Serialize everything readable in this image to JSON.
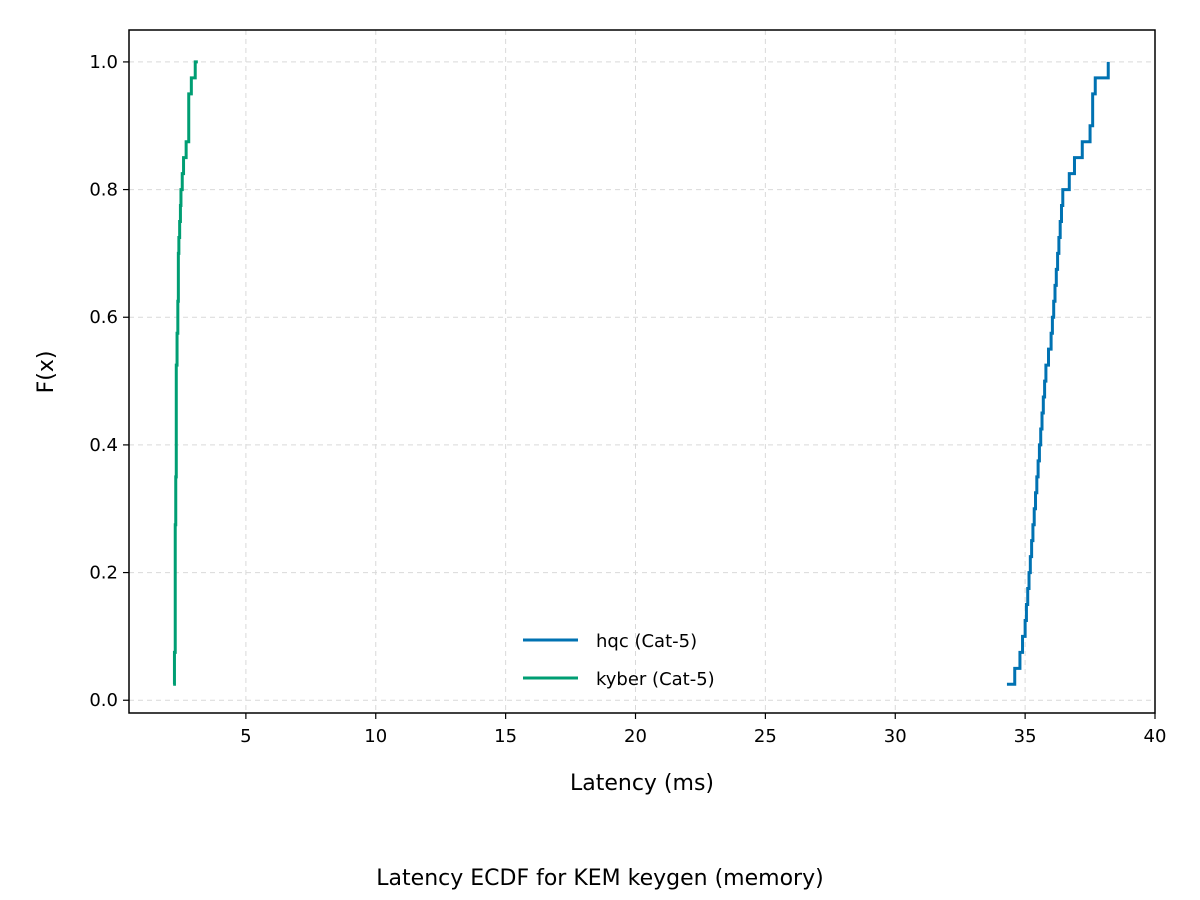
{
  "caption": "Latency ECDF for KEM keygen (memory)",
  "chart_data": {
    "type": "line",
    "subtype": "ecdf-step",
    "title": "",
    "xlabel": "Latency (ms)",
    "ylabel": "F(x)",
    "xlim": [
      0.5,
      40
    ],
    "ylim": [
      -0.02,
      1.05
    ],
    "xticks": [
      5,
      10,
      15,
      20,
      25,
      30,
      35,
      40
    ],
    "yticks": [
      0.0,
      0.2,
      0.4,
      0.6,
      0.8,
      1.0
    ],
    "xtick_labels": [
      "5",
      "10",
      "15",
      "20",
      "25",
      "30",
      "35",
      "40"
    ],
    "ytick_labels": [
      "0.0",
      "0.2",
      "0.4",
      "0.6",
      "0.8",
      "1.0"
    ],
    "grid": true,
    "legend_position": "lower-center",
    "series": [
      {
        "name": "hqc (Cat-5)",
        "color": "#0072B2",
        "x": [
          34.3,
          34.6,
          34.8,
          34.9,
          35.0,
          35.05,
          35.1,
          35.15,
          35.2,
          35.25,
          35.3,
          35.35,
          35.4,
          35.45,
          35.5,
          35.55,
          35.6,
          35.65,
          35.7,
          35.75,
          35.8,
          35.9,
          36.0,
          36.05,
          36.1,
          36.15,
          36.2,
          36.25,
          36.3,
          36.35,
          36.4,
          36.45,
          36.5,
          36.55,
          36.6,
          36.7,
          36.9,
          37.2,
          37.5,
          37.6,
          37.7,
          38.2
        ],
        "y": [
          0.025,
          0.05,
          0.075,
          0.1,
          0.125,
          0.15,
          0.175,
          0.2,
          0.225,
          0.25,
          0.275,
          0.3,
          0.325,
          0.35,
          0.375,
          0.4,
          0.425,
          0.45,
          0.475,
          0.5,
          0.525,
          0.55,
          0.575,
          0.6,
          0.625,
          0.65,
          0.675,
          0.7,
          0.725,
          0.75,
          0.775,
          0.8,
          0.8,
          0.8,
          0.8,
          0.825,
          0.85,
          0.875,
          0.9,
          0.95,
          0.975,
          1.0
        ]
      },
      {
        "name": "kyber (Cat-5)",
        "color": "#009E73",
        "x": [
          2.2,
          2.25,
          2.28,
          2.3,
          2.32,
          2.35,
          2.38,
          2.4,
          2.42,
          2.45,
          2.48,
          2.5,
          2.55,
          2.6,
          2.7,
          2.8,
          2.9,
          3.05,
          3.1,
          3.15
        ],
        "y": [
          0.025,
          0.075,
          0.275,
          0.35,
          0.525,
          0.575,
          0.625,
          0.7,
          0.725,
          0.75,
          0.775,
          0.8,
          0.825,
          0.85,
          0.875,
          0.95,
          0.975,
          1.0,
          1.0,
          1.0
        ]
      }
    ]
  }
}
